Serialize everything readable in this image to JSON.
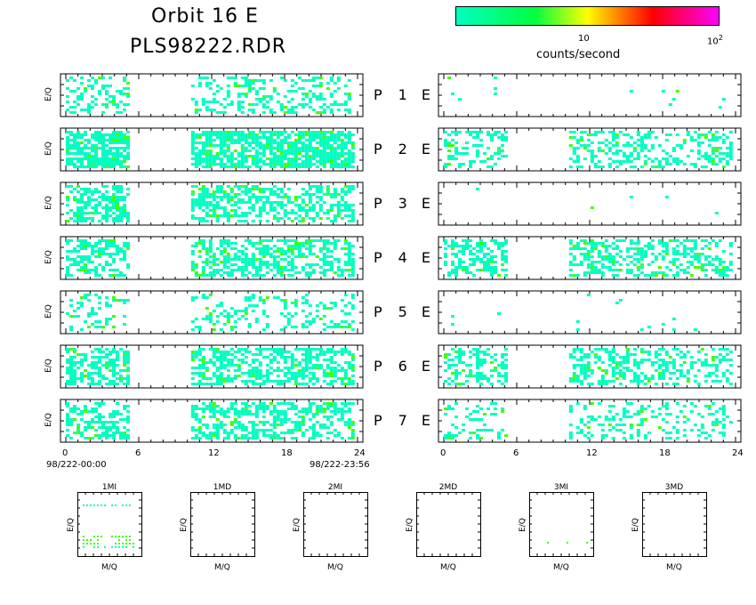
{
  "header": {
    "line1": "Orbit 16 E",
    "line2": "PLS98222.RDR"
  },
  "colorbar": {
    "tick10": "10",
    "tick100": "10",
    "tick100_sup": "2",
    "label": "counts/second",
    "colors": [
      "#00ffc0",
      "#00ff40",
      "#ffff00",
      "#ff0000",
      "#ff00ff"
    ]
  },
  "rows": [
    {
      "label": "P",
      "num": "1",
      "suffix": "E",
      "ylabel": "E/Q"
    },
    {
      "label": "P",
      "num": "2",
      "suffix": "E",
      "ylabel": "E/Q"
    },
    {
      "label": "P",
      "num": "3",
      "suffix": "E",
      "ylabel": "E/Q"
    },
    {
      "label": "P",
      "num": "4",
      "suffix": "E",
      "ylabel": "E/Q"
    },
    {
      "label": "P",
      "num": "5",
      "suffix": "E",
      "ylabel": "E/Q"
    },
    {
      "label": "P",
      "num": "6",
      "suffix": "E",
      "ylabel": "E/Q"
    },
    {
      "label": "P",
      "num": "7",
      "suffix": "E",
      "ylabel": "E/Q"
    }
  ],
  "xaxis": {
    "ticks": [
      "0",
      "6",
      "12",
      "18",
      "24"
    ],
    "start_label": "98/222-00:00",
    "end_label": "98/222-23:56"
  },
  "mass_panels": [
    {
      "title": "1MI",
      "xlabel": "M/Q",
      "ylabel": "E/Q"
    },
    {
      "title": "1MD",
      "xlabel": "M/Q",
      "ylabel": "E/Q"
    },
    {
      "title": "2MI",
      "xlabel": "M/Q",
      "ylabel": "E/Q"
    },
    {
      "title": "2MD",
      "xlabel": "M/Q",
      "ylabel": "E/Q"
    },
    {
      "title": "3MI",
      "xlabel": "M/Q",
      "ylabel": "E/Q"
    },
    {
      "title": "3MD",
      "xlabel": "M/Q",
      "ylabel": "E/Q"
    }
  ],
  "chart_data": {
    "type": "heatmap",
    "x_range": [
      0,
      24
    ],
    "x_ticks": [
      0,
      6,
      12,
      18,
      24
    ],
    "color_scale": {
      "type": "log",
      "range": [
        1,
        100
      ]
    },
    "left_column": {
      "panels": [
        "P1",
        "P2",
        "P3",
        "P4",
        "P5",
        "P6",
        "P7"
      ],
      "data_intervals_hours": [
        [
          0,
          5.5
        ],
        [
          10.3,
          24
        ]
      ],
      "density": [
        0.35,
        0.75,
        0.55,
        0.55,
        0.25,
        0.55,
        0.5
      ]
    },
    "right_column": {
      "panels": [
        "P1",
        "P2",
        "P3",
        "P4",
        "P5",
        "P6",
        "P7"
      ],
      "data_intervals_hours": [
        [
          0,
          5.5
        ],
        [
          10.3,
          24
        ]
      ],
      "density": [
        0.01,
        0.35,
        0.005,
        0.45,
        0.02,
        0.4,
        0.25
      ]
    },
    "gap_hours": [
      5.5,
      10.3
    ]
  }
}
